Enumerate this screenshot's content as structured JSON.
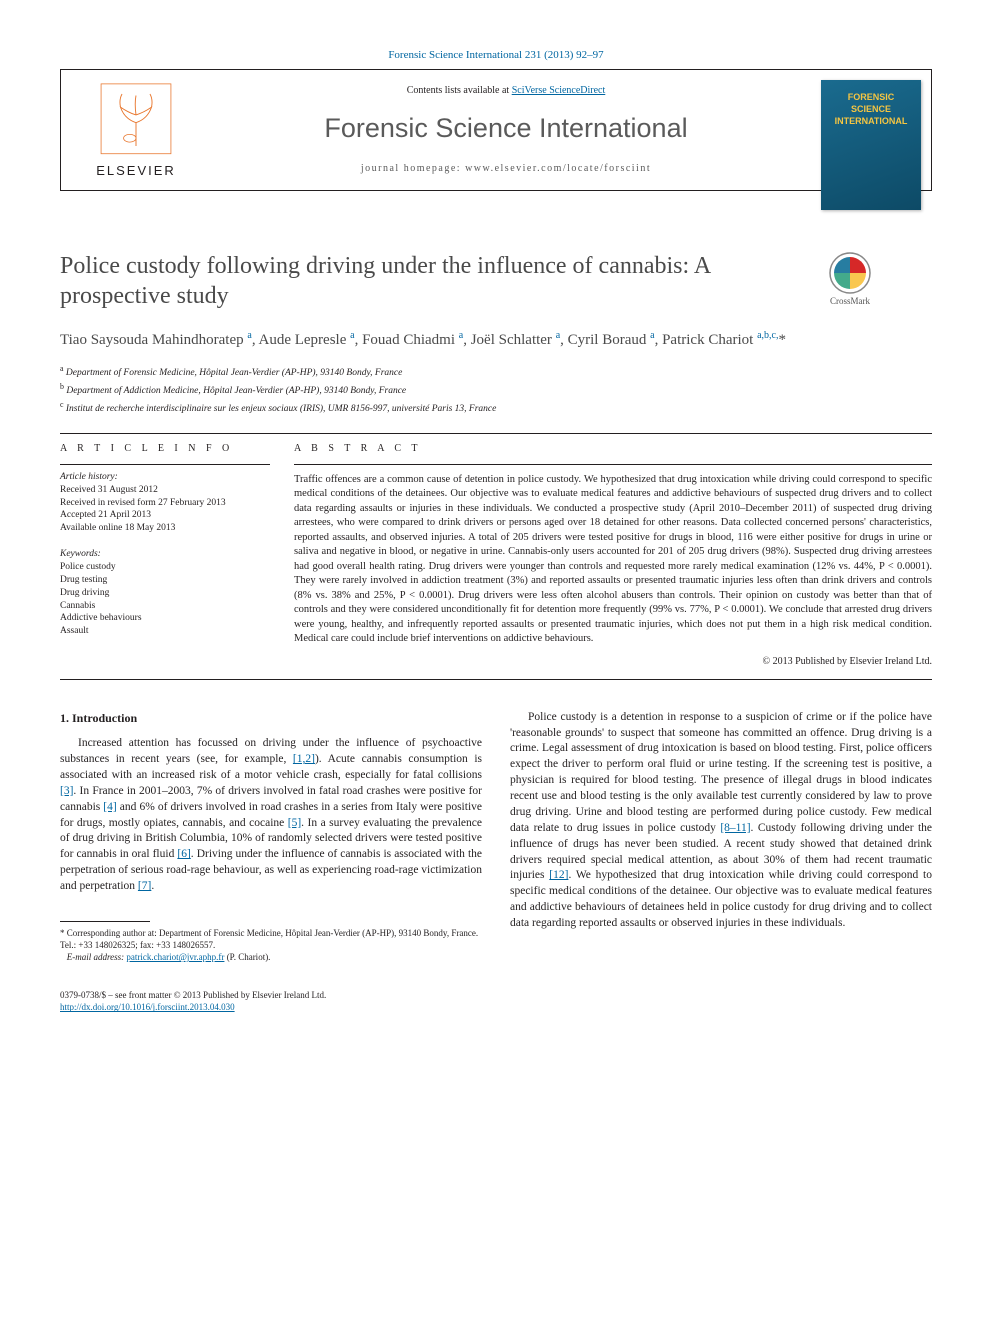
{
  "journal_ref": {
    "text": "Forensic Science International 231 (2013) 92–97",
    "link_color": "#0066a1"
  },
  "header": {
    "contents_prefix": "Contents lists available at ",
    "contents_link": "SciVerse ScienceDirect",
    "journal_name": "Forensic Science International",
    "homepage_prefix": "journal homepage: ",
    "homepage_url": "www.elsevier.com/locate/forsciint",
    "elsevier_label": "ELSEVIER",
    "cover_text": "FORENSIC\nSCIENCE\nINTERNATIONAL"
  },
  "crossmark_label": "CrossMark",
  "title": "Police custody following driving under the influence of cannabis: A prospective study",
  "authors_html": "Tiao Saysouda Mahindhoratep <sup>a</sup>, Aude Lepresle <sup>a</sup>, Fouad Chiadmi <sup>a</sup>, Joël Schlatter <sup>a</sup>, Cyril Boraud <sup>a</sup>, Patrick Chariot <sup>a,b,c,</sup>*",
  "affiliations": [
    {
      "sup": "a",
      "text": "Department of Forensic Medicine, Hôpital Jean-Verdier (AP-HP), 93140 Bondy, France"
    },
    {
      "sup": "b",
      "text": "Department of Addiction Medicine, Hôpital Jean-Verdier (AP-HP), 93140 Bondy, France"
    },
    {
      "sup": "c",
      "text": "Institut de recherche interdisciplinaire sur les enjeux sociaux (IRIS), UMR 8156-997, université Paris 13, France"
    }
  ],
  "article_info": {
    "heading": "A R T I C L E   I N F O",
    "history_label": "Article history:",
    "history": [
      "Received 31 August 2012",
      "Received in revised form 27 February 2013",
      "Accepted 21 April 2013",
      "Available online 18 May 2013"
    ],
    "keywords_label": "Keywords:",
    "keywords": [
      "Police custody",
      "Drug testing",
      "Drug driving",
      "Cannabis",
      "Addictive behaviours",
      "Assault"
    ]
  },
  "abstract": {
    "heading": "A B S T R A C T",
    "text": "Traffic offences are a common cause of detention in police custody. We hypothesized that drug intoxication while driving could correspond to specific medical conditions of the detainees. Our objective was to evaluate medical features and addictive behaviours of suspected drug drivers and to collect data regarding assaults or injuries in these individuals. We conducted a prospective study (April 2010–December 2011) of suspected drug driving arrestees, who were compared to drink drivers or persons aged over 18 detained for other reasons. Data collected concerned persons' characteristics, reported assaults, and observed injuries. A total of 205 drivers were tested positive for drugs in blood, 116 were either positive for drugs in urine or saliva and negative in blood, or negative in urine. Cannabis-only users accounted for 201 of 205 drug drivers (98%). Suspected drug driving arrestees had good overall health rating. Drug drivers were younger than controls and requested more rarely medical examination (12% vs. 44%, P < 0.0001). They were rarely involved in addiction treatment (3%) and reported assaults or presented traumatic injuries less often than drink drivers and controls (8% vs. 38% and 25%, P < 0.0001). Drug drivers were less often alcohol abusers than controls. Their opinion on custody was better than that of controls and they were considered unconditionally fit for detention more frequently (99% vs. 77%, P < 0.0001). We conclude that arrested drug drivers were young, healthy, and infrequently reported assaults or presented traumatic injuries, which does not put them in a high risk medical condition. Medical care could include brief interventions on addictive behaviours.",
    "copyright": "© 2013 Published by Elsevier Ireland Ltd."
  },
  "intro": {
    "heading": "1. Introduction",
    "para1_pre": "Increased attention has focussed on driving under the influence of psychoactive substances in recent years (see, for example, ",
    "para1_ref1": "[1,2]",
    "para1_mid1": "). Acute cannabis consumption is associated with an increased risk of a motor vehicle crash, especially for fatal collisions ",
    "para1_ref2": "[3]",
    "para1_mid2": ". In France in 2001–2003, 7% of drivers involved in fatal road crashes were positive for cannabis ",
    "para1_ref3": "[4]",
    "para1_mid3": " and 6% of drivers involved in road crashes in a series from Italy were positive for drugs, mostly opiates, cannabis, and cocaine ",
    "para1_ref4": "[5]",
    "para1_mid4": ". In a survey evaluating the prevalence of drug driving in British Columbia, 10% of randomly selected drivers were tested positive for cannabis in oral fluid ",
    "para1_ref5": "[6]",
    "para1_mid5": ". Driving under the influence of cannabis is associated with the perpetration of serious road-rage behaviour, as well as experiencing road-rage victimization and perpetration ",
    "para1_ref6": "[7]",
    "para1_end": ".",
    "para2_pre": "Police custody is a detention in response to a suspicion of crime or if the police have 'reasonable grounds' to suspect that someone has committed an offence. Drug driving is a crime. Legal assessment of drug intoxication is based on blood testing. First, police officers expect the driver to perform oral fluid or urine testing. If the screening test is positive, a physician is required for blood testing. The presence of illegal drugs in blood indicates recent use and blood testing is the only available test currently considered by law to prove drug driving. Urine and blood testing are performed during police custody. Few medical data relate to drug issues in police custody ",
    "para2_ref1": "[8–11]",
    "para2_mid1": ". Custody following driving under the influence of drugs has never been studied. A recent study showed that detained drink drivers required special medical attention, as about 30% of them had recent traumatic injuries ",
    "para2_ref2": "[12]",
    "para2_end": ". We hypothesized that drug intoxication while driving could correspond to specific medical conditions of the detainee. Our objective was to evaluate medical features and addictive behaviours of detainees held in police custody for drug driving and to collect data regarding reported assaults or observed injuries in these individuals."
  },
  "footnote": {
    "corr_label": "* Corresponding author at: Department of Forensic Medicine, Hôpital Jean-Verdier (AP-HP), 93140 Bondy, France. Tel.: +33 148026325; fax: +33 148026557.",
    "email_label": "E-mail address: ",
    "email": "patrick.chariot@jvr.aphp.fr",
    "email_suffix": " (P. Chariot)."
  },
  "bottom": {
    "issn_line": "0379-0738/$ – see front matter © 2013 Published by Elsevier Ireland Ltd.",
    "doi": "http://dx.doi.org/10.1016/j.forsciint.2013.04.030"
  },
  "colors": {
    "link": "#0066a1",
    "text": "#231f20",
    "title_gray": "#4a4a4a",
    "journal_gray": "#5a5a5a"
  }
}
